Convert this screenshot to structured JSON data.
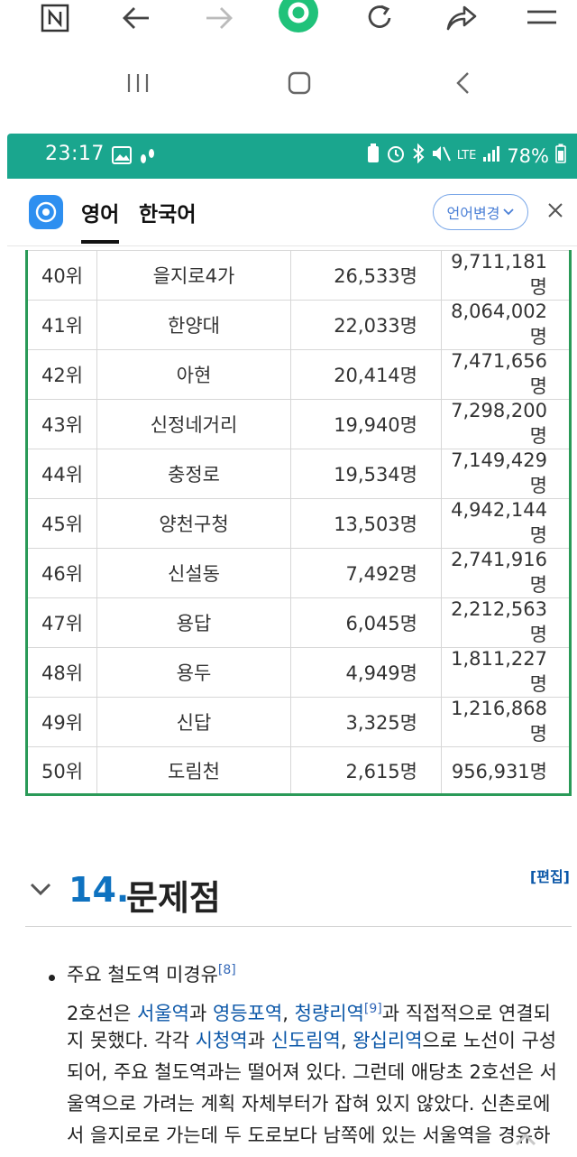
{
  "browser_toolbar": {
    "items": [
      "naver-n",
      "back",
      "forward",
      "home",
      "refresh",
      "share",
      "menu"
    ]
  },
  "status_bar": {
    "time": "23:17",
    "battery": "78%",
    "network": "LTE"
  },
  "translate_bar": {
    "tab_english": "영어",
    "tab_korean": "한국어",
    "change_language": "언어변경"
  },
  "table": {
    "rows": [
      {
        "rank": "40위",
        "station": "을지로4가",
        "daily": "26,533명",
        "total": "9,711,181명",
        "style": "plain"
      },
      {
        "rank": "41위",
        "station": "한양대",
        "daily": "22,033명",
        "total": "8,064,002명",
        "style": "plain"
      },
      {
        "rank": "42위",
        "station": "아현",
        "daily": "20,414명",
        "total": "7,471,656명",
        "style": "plain"
      },
      {
        "rank": "43위",
        "station": "신정네거리",
        "daily": "19,940명",
        "total": "7,298,200명",
        "style": "purple"
      },
      {
        "rank": "44위",
        "station": "충정로",
        "daily": "19,534명",
        "total": "7,149,429명",
        "style": "plain"
      },
      {
        "rank": "45위",
        "station": "양천구청",
        "daily": "13,503명",
        "total": "4,942,144명",
        "style": "purple"
      },
      {
        "rank": "46위",
        "station": "신설동",
        "daily": "7,492명",
        "total": "2,741,916명",
        "style": "blue"
      },
      {
        "rank": "47위",
        "station": "용답",
        "daily": "6,045명",
        "total": "2,212,563명",
        "style": "blue"
      },
      {
        "rank": "48위",
        "station": "용두",
        "daily": "4,949명",
        "total": "1,811,227명",
        "style": "blue"
      },
      {
        "rank": "49위",
        "station": "신답",
        "daily": "3,325명",
        "total": "1,216,868명",
        "style": "blue"
      },
      {
        "rank": "50위",
        "station": "도림천",
        "daily": "2,615명",
        "total": "956,931명",
        "style": "purple"
      }
    ]
  },
  "section": {
    "number": "14.",
    "title": "문제점",
    "edit": "[편집]"
  },
  "content": {
    "bullet": "주요 철도역 미경유",
    "bullet_ref": "[8]",
    "p1_a": "2호선은 ",
    "p1_l1": "서울역",
    "p1_b": "과 ",
    "p1_l2": "영등포역",
    "p1_c": ", ",
    "p1_l3": "청량리역",
    "p1_ref": "[9]",
    "p1_d": "과 직접적으로 연결되",
    "p2_a": "지 못했다. 각각 ",
    "p2_l1": "시청역",
    "p2_b": "과 ",
    "p2_l2": "신도림역",
    "p2_c": ", ",
    "p2_l3": "왕십리역",
    "p2_d": "으로 노선이 구성",
    "p3": "되어, 주요 철도역과는 떨어져 있다. 그런데 애당초 2호선은 서",
    "p4": "울역으로 가려는 계획 자체부터가 잡혀 있지 않았다. 신촌로에",
    "p5": "서 을지로로 가는데 두 도로보다 남쪽에 있는 서울역을 경유하"
  },
  "colors": {
    "status_bar": "#1aa68e",
    "table_border": "#2a9a58",
    "link_blue": "#0b57a8",
    "link_purple": "#8a4ea0",
    "section_number": "#0f72c0"
  }
}
